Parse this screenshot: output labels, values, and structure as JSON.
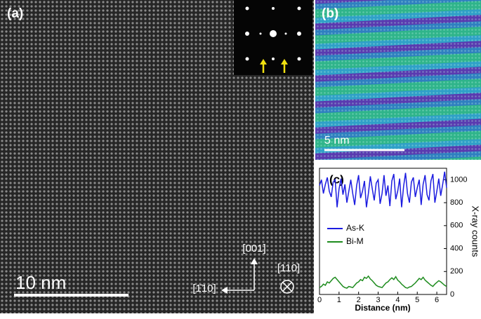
{
  "panel_a": {
    "label": "(a)",
    "scale_bar": "10 nm",
    "direction_up": "[001]",
    "direction_left": "[1̄10]",
    "direction_out": "[110]"
  },
  "panel_b": {
    "label": "(b)",
    "scale_bar": "5 nm"
  },
  "chart_data": {
    "type": "line",
    "label": "(c)",
    "x_label": "Distance (nm)",
    "y_label": "X-ray counts",
    "x": [
      0,
      0.1,
      0.2,
      0.3,
      0.4,
      0.5,
      0.6,
      0.7,
      0.8,
      0.9,
      1,
      1.1,
      1.2,
      1.3,
      1.4,
      1.5,
      1.6,
      1.7,
      1.8,
      1.9,
      2,
      2.1,
      2.2,
      2.3,
      2.4,
      2.5,
      2.6,
      2.7,
      2.8,
      2.9,
      3,
      3.1,
      3.2,
      3.3,
      3.4,
      3.5,
      3.6,
      3.7,
      3.8,
      3.9,
      4,
      4.1,
      4.2,
      4.3,
      4.4,
      4.5,
      4.6,
      4.7,
      4.8,
      4.9,
      5,
      5.1,
      5.2,
      5.3,
      5.4,
      5.5,
      5.6,
      5.7,
      5.8,
      5.9,
      6,
      6.1,
      6.2,
      6.3,
      6.4,
      6.5
    ],
    "series": [
      {
        "name": "As-K",
        "color": "#1c1ce0",
        "values": [
          950,
          1000,
          880,
          960,
          1020,
          900,
          850,
          980,
          1000,
          760,
          920,
          1010,
          870,
          960,
          800,
          900,
          1000,
          880,
          780,
          950,
          1040,
          840,
          900,
          990,
          760,
          880,
          1030,
          920,
          820,
          970,
          1000,
          790,
          880,
          1040,
          860,
          950,
          770,
          990,
          1050,
          830,
          900,
          1010,
          760,
          940,
          1060,
          880,
          800,
          980,
          1020,
          850,
          930,
          1000,
          780,
          960,
          1040,
          870,
          820,
          990,
          1050,
          800,
          900,
          1010,
          860,
          960,
          1070,
          930
        ]
      },
      {
        "name": "Bi-M",
        "color": "#1e8c1e",
        "values": [
          60,
          70,
          90,
          80,
          110,
          100,
          120,
          140,
          150,
          130,
          110,
          90,
          70,
          60,
          55,
          70,
          65,
          60,
          80,
          100,
          110,
          130,
          120,
          150,
          140,
          160,
          135,
          120,
          100,
          80,
          70,
          65,
          60,
          80,
          100,
          110,
          130,
          145,
          130,
          155,
          125,
          110,
          90,
          75,
          60,
          55,
          65,
          70,
          85,
          100,
          120,
          140,
          130,
          150,
          125,
          110,
          95,
          80,
          70,
          90,
          105,
          120,
          110,
          95,
          80,
          70
        ]
      }
    ],
    "xlim": [
      0,
      6.5
    ],
    "xticks": [
      0,
      1,
      2,
      3,
      4,
      5,
      6
    ],
    "ylim": [
      0,
      1100
    ],
    "yticks": [
      0,
      200,
      400,
      600,
      800,
      1000
    ],
    "legend": "left"
  }
}
